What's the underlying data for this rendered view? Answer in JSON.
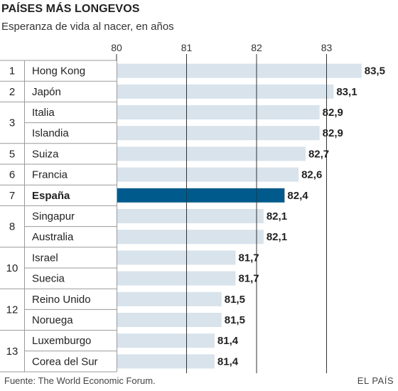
{
  "header": {
    "title": "PAÍSES MÁS LONGEVOS",
    "subtitle": "Esperanza de vida al nacer, en años"
  },
  "footer": {
    "source": "Fuente: The World Economic Forum.",
    "brand": "EL PAÍS"
  },
  "colors": {
    "bar": "#d8e3ec",
    "highlight": "#005a8c",
    "grid": "#333333",
    "border": "#9a9a9a"
  },
  "chart_data": {
    "type": "bar",
    "orientation": "horizontal",
    "title": "PAÍSES MÁS LONGEVOS",
    "subtitle": "Esperanza de vida al nacer, en años",
    "xlim": [
      80,
      83.5
    ],
    "xticks": [
      "80",
      "81",
      "82",
      "83"
    ],
    "rows": [
      {
        "country": "Hong Kong",
        "value": 83.5,
        "value_label": "83,5",
        "rank": "1"
      },
      {
        "country": "Japón",
        "value": 83.1,
        "value_label": "83,1",
        "rank": "2"
      },
      {
        "country": "Italia",
        "value": 82.9,
        "value_label": "82,9",
        "rank": "3"
      },
      {
        "country": "Islandia",
        "value": 82.9,
        "value_label": "82,9",
        "rank": ""
      },
      {
        "country": "Suiza",
        "value": 82.7,
        "value_label": "82,7",
        "rank": "5"
      },
      {
        "country": "Francia",
        "value": 82.6,
        "value_label": "82,6",
        "rank": "6"
      },
      {
        "country": "España",
        "value": 82.4,
        "value_label": "82,4",
        "rank": "7",
        "highlight": true
      },
      {
        "country": "Singapur",
        "value": 82.1,
        "value_label": "82,1",
        "rank": "8"
      },
      {
        "country": "Australia",
        "value": 82.1,
        "value_label": "82,1",
        "rank": ""
      },
      {
        "country": "Israel",
        "value": 81.7,
        "value_label": "81,7",
        "rank": "10"
      },
      {
        "country": "Suecia",
        "value": 81.7,
        "value_label": "81,7",
        "rank": ""
      },
      {
        "country": "Reino Unido",
        "value": 81.5,
        "value_label": "81,5",
        "rank": "12"
      },
      {
        "country": "Noruega",
        "value": 81.5,
        "value_label": "81,5",
        "rank": ""
      },
      {
        "country": "Luxemburgo",
        "value": 81.4,
        "value_label": "81,4",
        "rank": "13"
      },
      {
        "country": "Corea del Sur",
        "value": 81.4,
        "value_label": "81,4",
        "rank": ""
      }
    ]
  }
}
